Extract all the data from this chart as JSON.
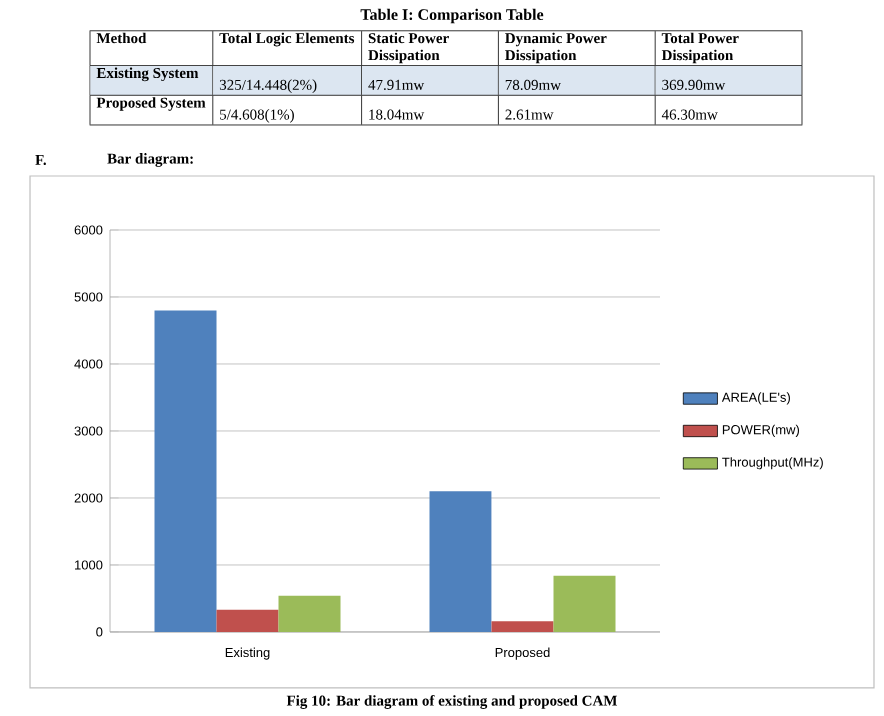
{
  "chart_data": {
    "type": "bar",
    "categories": [
      "Existing",
      "Proposed"
    ],
    "series": [
      {
        "name": "AREA(LE's)",
        "color": "#4f81bd",
        "values": [
          4800,
          2100
        ]
      },
      {
        "name": "POWER(mw)",
        "color": "#c0504d",
        "values": [
          330,
          160
        ]
      },
      {
        "name": "Throughput(MHz)",
        "color": "#9bbb59",
        "values": [
          540,
          840
        ]
      }
    ],
    "ylim": [
      0,
      6000
    ],
    "yticks": [
      0,
      1000,
      2000,
      3000,
      4000,
      5000,
      6000
    ],
    "grid": "y",
    "legend": "right",
    "annotations": [
      "Table I: Comparison Table",
      "Method",
      "Total Logic Elements",
      "Static Power Dissipation",
      "Dynamic Power Dissipation",
      "Total Power Dissipation",
      "Existing System",
      "325/14.448(2%)",
      "47.91mw",
      "78.09mw",
      "369.90mw",
      "Proposed System",
      "5/4.608(1%)",
      "18.04mw",
      "2.61mw",
      "46.30mw",
      "F.",
      "Bar diagram:",
      "Fig 10: Bar diagram of existing and proposed CAM"
    ]
  }
}
